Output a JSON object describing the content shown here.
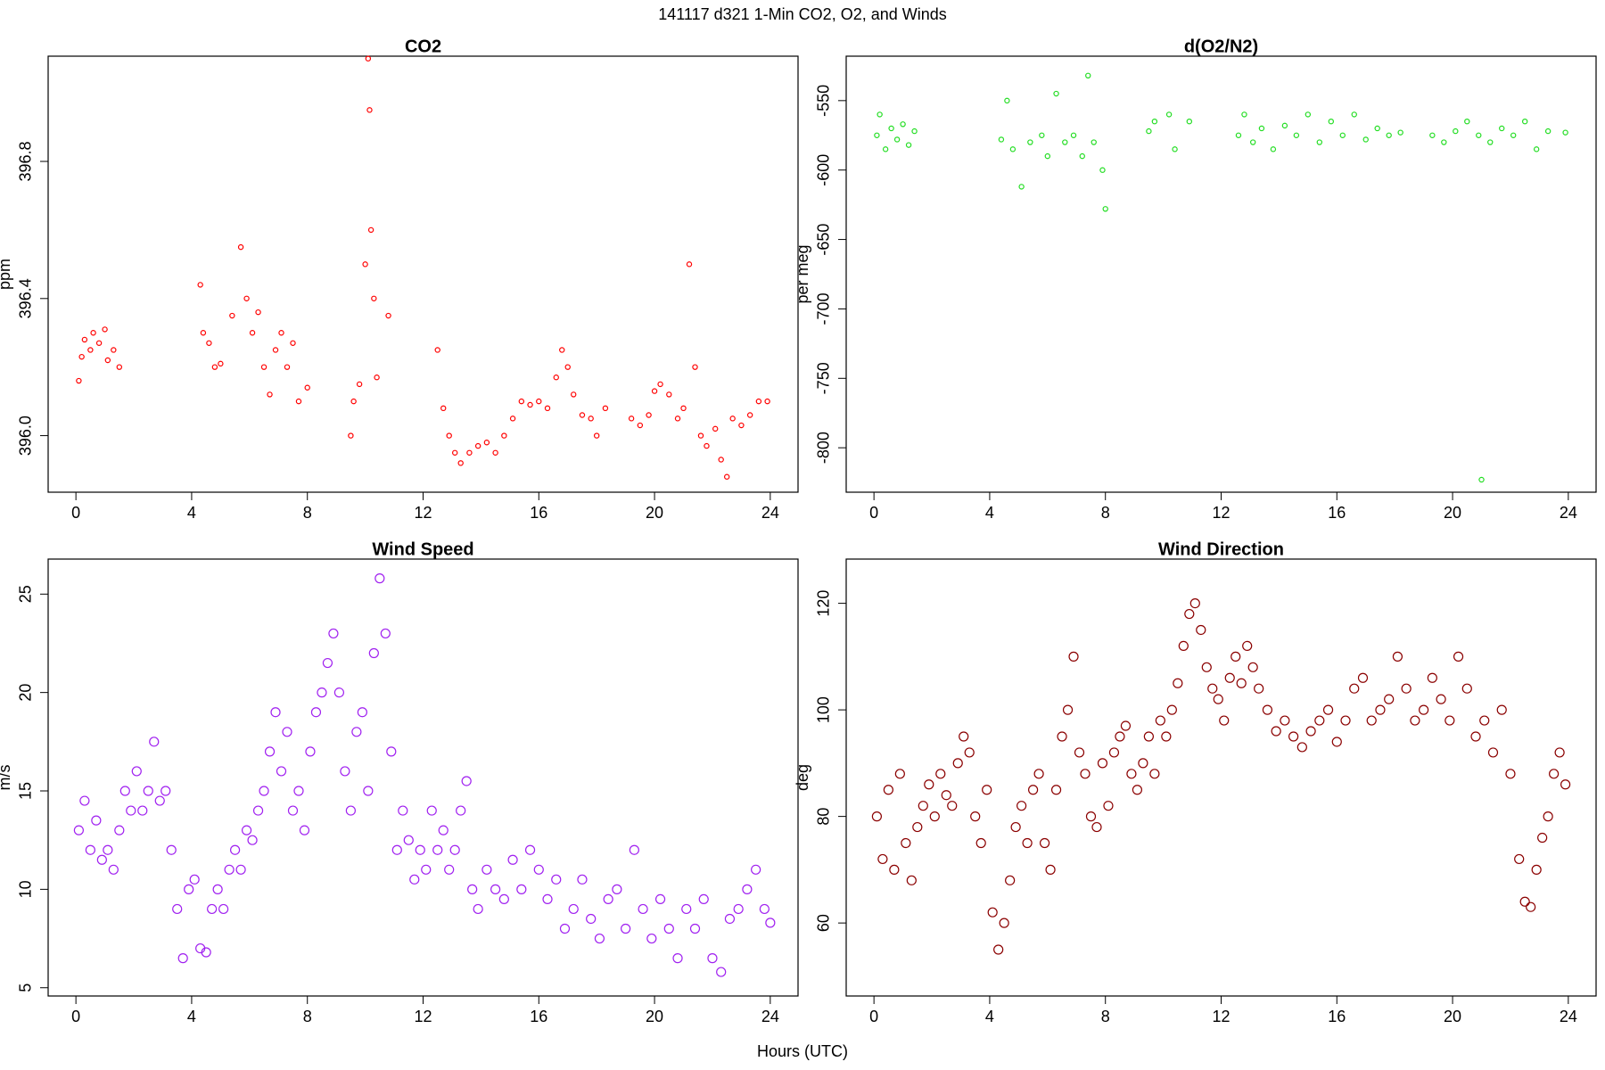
{
  "title": "141117   d321   1-Min CO2, O2, and Winds",
  "xlabel": "Hours (UTC)",
  "chart_data": [
    {
      "type": "scatter",
      "title": "CO2",
      "ylabel": "ppm",
      "color": "#ff0000",
      "xlim": [
        -0.96,
        24.96
      ],
      "xticks": [
        0,
        4,
        8,
        12,
        16,
        20,
        24
      ],
      "ylim": [
        395.835,
        397.107
      ],
      "yticks": [
        {
          "value": 396.0,
          "label": "396.0"
        },
        396.4,
        396.8
      ],
      "x": [
        0.1,
        0.2,
        0.3,
        0.5,
        0.6,
        0.8,
        1.0,
        1.1,
        1.3,
        1.5,
        4.3,
        4.4,
        4.6,
        4.8,
        5.0,
        5.4,
        5.7,
        5.9,
        6.1,
        6.3,
        6.5,
        6.7,
        6.9,
        7.1,
        7.3,
        7.5,
        7.7,
        8.0,
        9.5,
        9.6,
        9.8,
        10.0,
        10.1,
        10.15,
        10.2,
        10.3,
        10.4,
        10.8,
        12.5,
        12.7,
        12.9,
        13.1,
        13.3,
        13.6,
        13.9,
        14.2,
        14.5,
        14.8,
        15.1,
        15.4,
        15.7,
        16.0,
        16.3,
        16.6,
        16.8,
        17.0,
        17.2,
        17.5,
        17.8,
        18.0,
        18.3,
        19.2,
        19.5,
        19.8,
        20.0,
        20.2,
        20.5,
        20.8,
        21.0,
        21.2,
        21.4,
        21.6,
        21.8,
        22.1,
        22.3,
        22.5,
        22.7,
        23.0,
        23.3,
        23.6,
        23.9
      ],
      "values": [
        396.16,
        396.23,
        396.28,
        396.25,
        396.3,
        396.27,
        396.31,
        396.22,
        396.25,
        396.2,
        396.44,
        396.3,
        396.27,
        396.2,
        396.21,
        396.35,
        396.55,
        396.4,
        396.3,
        396.36,
        396.2,
        396.12,
        396.25,
        396.3,
        396.2,
        396.27,
        396.1,
        396.14,
        396.0,
        396.1,
        396.15,
        396.5,
        397.1,
        396.95,
        396.6,
        396.4,
        396.17,
        396.35,
        396.25,
        396.08,
        396.0,
        395.95,
        395.92,
        395.95,
        395.97,
        395.98,
        395.95,
        396.0,
        396.05,
        396.1,
        396.09,
        396.1,
        396.08,
        396.17,
        396.25,
        396.2,
        396.12,
        396.06,
        396.05,
        396.0,
        396.08,
        396.05,
        396.03,
        396.06,
        396.13,
        396.15,
        396.12,
        396.05,
        396.08,
        396.5,
        396.2,
        396.0,
        395.97,
        396.02,
        395.93,
        395.88,
        396.05,
        396.03,
        396.06,
        396.1,
        396.1
      ]
    },
    {
      "type": "scatter",
      "title": "d(O2/N2)",
      "ylabel": "per meg",
      "color": "#22dd22",
      "xlim": [
        -0.96,
        24.96
      ],
      "xticks": [
        0,
        4,
        8,
        12,
        16,
        20,
        24
      ],
      "ylim": [
        -832,
        -518
      ],
      "yticks": [
        -800,
        -750,
        -700,
        -650,
        -600,
        -550
      ],
      "x": [
        0.1,
        0.2,
        0.4,
        0.6,
        0.8,
        1.0,
        1.2,
        1.4,
        4.4,
        4.6,
        4.8,
        5.1,
        5.4,
        5.8,
        6.0,
        6.3,
        6.6,
        6.9,
        7.2,
        7.4,
        7.6,
        7.9,
        8.0,
        9.5,
        9.7,
        10.2,
        10.4,
        10.9,
        12.6,
        12.8,
        13.1,
        13.4,
        13.8,
        14.2,
        14.6,
        15.0,
        15.4,
        15.8,
        16.2,
        16.6,
        17.0,
        17.4,
        17.8,
        18.2,
        19.3,
        19.7,
        20.1,
        20.5,
        20.9,
        21.0,
        21.3,
        21.7,
        22.1,
        22.5,
        22.9,
        23.3,
        23.9
      ],
      "values": [
        -575,
        -560,
        -585,
        -570,
        -578,
        -567,
        -582,
        -572,
        -578,
        -550,
        -585,
        -612,
        -580,
        -575,
        -590,
        -545,
        -580,
        -575,
        -590,
        -532,
        -580,
        -600,
        -628,
        -572,
        -565,
        -560,
        -585,
        -565,
        -575,
        -560,
        -580,
        -570,
        -585,
        -568,
        -575,
        -560,
        -580,
        -565,
        -575,
        -560,
        -578,
        -570,
        -575,
        -573,
        -575,
        -580,
        -572,
        -565,
        -575,
        -823,
        -580,
        -570,
        -575,
        -565,
        -585,
        -572,
        -573
      ]
    },
    {
      "type": "scatter",
      "title": "Wind Speed",
      "ylabel": "m/s",
      "color": "#a020f0",
      "xlim": [
        -0.96,
        24.96
      ],
      "xticks": [
        0,
        4,
        8,
        12,
        16,
        20,
        24
      ],
      "ylim": [
        4.58,
        26.78
      ],
      "yticks": [
        5,
        10,
        15,
        20,
        25
      ],
      "x": [
        0.1,
        0.3,
        0.5,
        0.7,
        0.9,
        1.1,
        1.3,
        1.5,
        1.7,
        1.9,
        2.1,
        2.3,
        2.5,
        2.7,
        2.9,
        3.1,
        3.3,
        3.5,
        3.7,
        3.9,
        4.1,
        4.3,
        4.5,
        4.7,
        4.9,
        5.1,
        5.3,
        5.5,
        5.7,
        5.9,
        6.1,
        6.3,
        6.5,
        6.7,
        6.9,
        7.1,
        7.3,
        7.5,
        7.7,
        7.9,
        8.1,
        8.3,
        8.5,
        8.7,
        8.9,
        9.1,
        9.3,
        9.5,
        9.7,
        9.9,
        10.1,
        10.3,
        10.5,
        10.7,
        10.9,
        11.1,
        11.3,
        11.5,
        11.7,
        11.9,
        12.1,
        12.3,
        12.5,
        12.7,
        12.9,
        13.1,
        13.3,
        13.5,
        13.7,
        13.9,
        14.2,
        14.5,
        14.8,
        15.1,
        15.4,
        15.7,
        16.0,
        16.3,
        16.6,
        16.9,
        17.2,
        17.5,
        17.8,
        18.1,
        18.4,
        18.7,
        19.0,
        19.3,
        19.6,
        19.9,
        20.2,
        20.5,
        20.8,
        21.1,
        21.4,
        21.7,
        22.0,
        22.3,
        22.6,
        22.9,
        23.2,
        23.5,
        23.8,
        24.0
      ],
      "values": [
        13,
        14.5,
        12,
        13.5,
        11.5,
        12,
        11,
        13,
        15,
        14,
        16,
        14,
        15,
        17.5,
        14.5,
        15,
        12,
        9,
        6.5,
        10,
        10.5,
        7,
        6.8,
        9,
        10,
        9,
        11,
        12,
        11,
        13,
        12.5,
        14,
        15,
        17,
        19,
        16,
        18,
        14,
        15,
        13,
        17,
        19,
        20,
        21.5,
        23,
        20,
        16,
        14,
        18,
        19,
        15,
        22,
        25.8,
        23,
        17,
        12,
        14,
        12.5,
        10.5,
        12,
        11,
        14,
        12,
        13,
        11,
        12,
        14,
        15.5,
        10,
        9,
        11,
        10,
        9.5,
        11.5,
        10,
        12,
        11,
        9.5,
        10.5,
        8,
        9,
        10.5,
        8.5,
        7.5,
        9.5,
        10,
        8,
        12,
        9,
        7.5,
        9.5,
        8,
        6.5,
        9,
        8,
        9.5,
        6.5,
        5.8,
        8.5,
        9,
        10,
        11,
        9,
        8.3
      ]
    },
    {
      "type": "scatter",
      "title": "Wind Direction",
      "ylabel": "deg",
      "color": "#8b0000",
      "xlim": [
        -0.96,
        24.96
      ],
      "xticks": [
        0,
        4,
        8,
        12,
        16,
        20,
        24
      ],
      "ylim": [
        46.3,
        128.3
      ],
      "yticks": [
        60,
        80,
        100,
        120
      ],
      "x": [
        0.1,
        0.3,
        0.5,
        0.7,
        0.9,
        1.1,
        1.3,
        1.5,
        1.7,
        1.9,
        2.1,
        2.3,
        2.5,
        2.7,
        2.9,
        3.1,
        3.3,
        3.5,
        3.7,
        3.9,
        4.1,
        4.3,
        4.5,
        4.7,
        4.9,
        5.1,
        5.3,
        5.5,
        5.7,
        5.9,
        6.1,
        6.3,
        6.5,
        6.7,
        6.9,
        7.1,
        7.3,
        7.5,
        7.7,
        7.9,
        8.1,
        8.3,
        8.5,
        8.7,
        8.9,
        9.1,
        9.3,
        9.5,
        9.7,
        9.9,
        10.1,
        10.3,
        10.5,
        10.7,
        10.9,
        11.1,
        11.3,
        11.5,
        11.7,
        11.9,
        12.1,
        12.3,
        12.5,
        12.7,
        12.9,
        13.1,
        13.3,
        13.6,
        13.9,
        14.2,
        14.5,
        14.8,
        15.1,
        15.4,
        15.7,
        16.0,
        16.3,
        16.6,
        16.9,
        17.2,
        17.5,
        17.8,
        18.1,
        18.4,
        18.7,
        19.0,
        19.3,
        19.6,
        19.9,
        20.2,
        20.5,
        20.8,
        21.1,
        21.4,
        21.7,
        22.0,
        22.3,
        22.5,
        22.7,
        22.9,
        23.1,
        23.3,
        23.5,
        23.7,
        23.9
      ],
      "values": [
        80,
        72,
        85,
        70,
        88,
        75,
        68,
        78,
        82,
        86,
        80,
        88,
        84,
        82,
        90,
        95,
        92,
        80,
        75,
        85,
        62,
        55,
        60,
        68,
        78,
        82,
        75,
        85,
        88,
        75,
        70,
        85,
        95,
        100,
        110,
        92,
        88,
        80,
        78,
        90,
        82,
        92,
        95,
        97,
        88,
        85,
        90,
        95,
        88,
        98,
        95,
        100,
        105,
        112,
        118,
        120,
        115,
        108,
        104,
        102,
        98,
        106,
        110,
        105,
        112,
        108,
        104,
        100,
        96,
        98,
        95,
        93,
        96,
        98,
        100,
        94,
        98,
        104,
        106,
        98,
        100,
        102,
        110,
        104,
        98,
        100,
        106,
        102,
        98,
        110,
        104,
        95,
        98,
        92,
        100,
        88,
        72,
        64,
        63,
        70,
        76,
        80,
        88,
        92,
        86
      ]
    }
  ]
}
